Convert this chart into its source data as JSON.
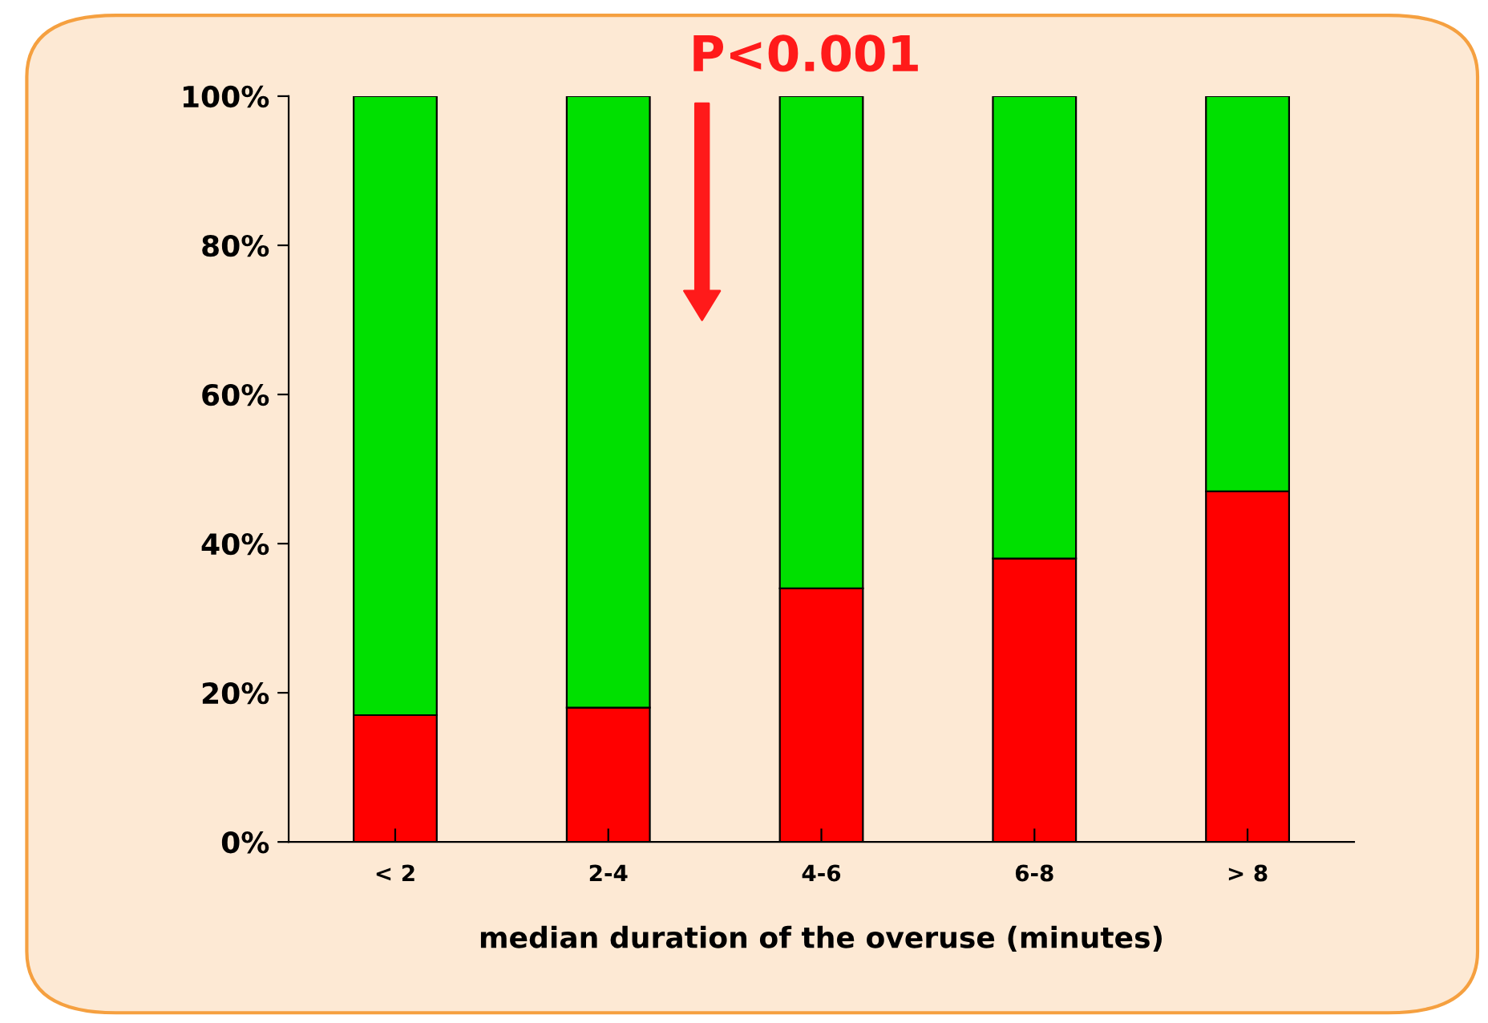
{
  "chart_data": {
    "type": "bar",
    "stacked": true,
    "xlabel": "median duration of the overuse (minutes)",
    "categories": [
      "< 2",
      "2-4",
      "4-6",
      "6-8",
      "> 8"
    ],
    "series": [
      {
        "color": "#ff0000",
        "values": [
          17,
          18,
          34,
          38,
          47
        ]
      },
      {
        "color": "#00e000",
        "values": [
          83,
          82,
          66,
          62,
          53
        ]
      }
    ],
    "ylim": [
      0,
      100
    ],
    "yticks": [
      {
        "value": 0,
        "label": "0%"
      },
      {
        "value": 20,
        "label": "20%"
      },
      {
        "value": 40,
        "label": "40%"
      },
      {
        "value": 60,
        "label": "60%"
      },
      {
        "value": 80,
        "label": "80%"
      },
      {
        "value": 100,
        "label": "100%"
      }
    ],
    "grid": false,
    "annotations": [
      "P<0.001"
    ]
  }
}
